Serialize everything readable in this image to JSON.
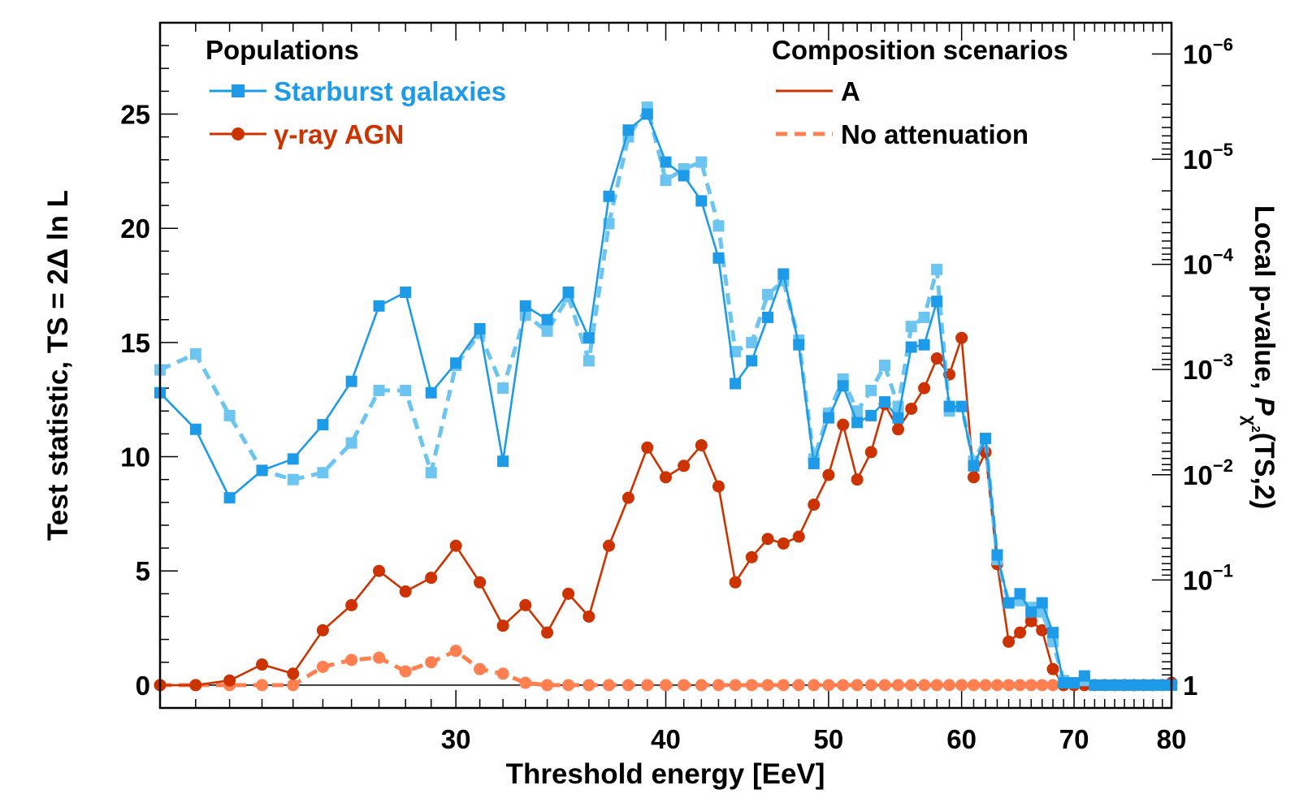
{
  "chart_data": {
    "type": "line",
    "xlabel": "Threshold energy  [EeV]",
    "ylabel": "Test statistic, TS = 2Δ ln L",
    "y2label_main": "Local p-value, ",
    "y2label_P": "P",
    "y2label_sub": "χ",
    "y2label_sup": "2",
    "y2label_tail": "(TS,2)",
    "xscale": "log",
    "xlim": [
      20,
      80
    ],
    "ylim": [
      -1,
      29
    ],
    "x_ticks": [
      30,
      40,
      50,
      60,
      70,
      80
    ],
    "y_ticks": [
      0,
      5,
      10,
      15,
      20,
      25
    ],
    "p_ticks": [
      {
        "base": "1",
        "exp": "",
        "ts": 0
      },
      {
        "base": "10",
        "exp": "−1",
        "ts": 4.605
      },
      {
        "base": "10",
        "exp": "−2",
        "ts": 9.21
      },
      {
        "base": "10",
        "exp": "−3",
        "ts": 13.816
      },
      {
        "base": "10",
        "exp": "−4",
        "ts": 18.421
      },
      {
        "base": "10",
        "exp": "−5",
        "ts": 23.026
      },
      {
        "base": "10",
        "exp": "−6",
        "ts": 27.631
      }
    ],
    "legend_populations": {
      "title": "Populations",
      "items": [
        {
          "label": "Starburst galaxies",
          "color": "#1e9be8",
          "marker": "square"
        },
        {
          "label": "γ-ray AGN",
          "color": "#cc3300",
          "marker": "circle"
        }
      ]
    },
    "legend_scenarios": {
      "title": "Composition scenarios",
      "items": [
        {
          "label": "A",
          "style": "solid",
          "color": "#cc3300"
        },
        {
          "label": "No attenuation",
          "style": "dashed",
          "color": "#ff7f50"
        }
      ]
    },
    "series": [
      {
        "name": "Starburst galaxies - A",
        "color": "#1e9be8",
        "dash": "solid",
        "marker": "square",
        "x": [
          20,
          21,
          22,
          23,
          24,
          25,
          26,
          27,
          28,
          29,
          30,
          31,
          32,
          33,
          34,
          35,
          36,
          37,
          38,
          39,
          40,
          41,
          42,
          43,
          44,
          45,
          46,
          47,
          48,
          49,
          50,
          51,
          52,
          53,
          54,
          55,
          56,
          57,
          58,
          59,
          60,
          61,
          62,
          63,
          64,
          65,
          66,
          67,
          68,
          69,
          70,
          71,
          72,
          73,
          74,
          75,
          76,
          77,
          78,
          79,
          80
        ],
        "y": [
          12.8,
          11.2,
          8.2,
          9.4,
          9.9,
          11.4,
          13.3,
          16.6,
          17.2,
          12.8,
          14.1,
          15.6,
          9.8,
          16.6,
          16.0,
          17.2,
          15.2,
          21.4,
          24.3,
          25.0,
          22.9,
          22.3,
          21.2,
          18.7,
          13.2,
          14.2,
          16.1,
          18.0,
          14.9,
          9.7,
          11.7,
          13.1,
          11.5,
          11.8,
          12.4,
          11.7,
          14.8,
          14.9,
          16.8,
          12.2,
          12.2,
          9.6,
          10.8,
          5.7,
          3.6,
          4.0,
          3.2,
          3.6,
          2.3,
          0.1,
          0.1,
          0.4,
          0.0,
          0.0,
          0.0,
          0.0,
          0.0,
          0.0,
          0.0,
          0.0,
          0.0
        ]
      },
      {
        "name": "Starburst galaxies - No attenuation",
        "color": "#6cc5f0",
        "dash": "dashed",
        "marker": "square",
        "x": [
          20,
          21,
          22,
          23,
          24,
          25,
          26,
          27,
          28,
          29,
          30,
          31,
          32,
          33,
          34,
          35,
          36,
          37,
          38,
          39,
          40,
          41,
          42,
          43,
          44,
          45,
          46,
          47,
          48,
          49,
          50,
          51,
          52,
          53,
          54,
          55,
          56,
          57,
          58,
          59,
          60,
          61,
          62,
          63,
          64,
          65,
          66,
          67,
          68,
          69,
          70,
          71,
          72,
          73,
          74,
          75,
          76,
          77,
          78,
          79,
          80
        ],
        "y": [
          13.8,
          14.5,
          11.8,
          9.4,
          9.0,
          9.3,
          10.6,
          12.9,
          12.9,
          9.3,
          14.0,
          15.4,
          13.0,
          16.2,
          15.5,
          17.0,
          14.2,
          20.2,
          24.0,
          25.3,
          22.1,
          22.6,
          22.9,
          20.1,
          14.6,
          15.0,
          17.1,
          17.7,
          15.1,
          9.9,
          11.9,
          13.4,
          12.0,
          12.9,
          14.0,
          12.2,
          15.7,
          16.1,
          18.2,
          12.0,
          12.2,
          9.8,
          10.8,
          5.5,
          3.6,
          3.7,
          3.4,
          3.2,
          1.9,
          0.2,
          0.1,
          0.2,
          0.0,
          0.0,
          0.0,
          0.0,
          0.0,
          0.0,
          0.0,
          0.0,
          0.0
        ]
      },
      {
        "name": "γ-ray AGN - A",
        "color": "#cc3300",
        "dash": "solid",
        "marker": "circle",
        "x": [
          20,
          21,
          22,
          23,
          24,
          25,
          26,
          27,
          28,
          29,
          30,
          31,
          32,
          33,
          34,
          35,
          36,
          37,
          38,
          39,
          40,
          41,
          42,
          43,
          44,
          45,
          46,
          47,
          48,
          49,
          50,
          51,
          52,
          53,
          54,
          55,
          56,
          57,
          58,
          59,
          60,
          61,
          62,
          63,
          64,
          65,
          66,
          67,
          68,
          69,
          70,
          71,
          72,
          73,
          74,
          75,
          76,
          77,
          78,
          79,
          80
        ],
        "y": [
          0.0,
          0.0,
          0.2,
          0.9,
          0.5,
          2.4,
          3.5,
          5.0,
          4.1,
          4.7,
          6.1,
          4.5,
          2.6,
          3.5,
          2.3,
          4.0,
          3.0,
          6.1,
          8.2,
          10.4,
          9.1,
          9.6,
          10.5,
          8.7,
          4.5,
          5.6,
          6.4,
          6.2,
          6.5,
          7.9,
          9.2,
          11.4,
          9.0,
          10.2,
          12.3,
          11.2,
          12.1,
          13.0,
          14.3,
          13.6,
          15.2,
          9.1,
          10.2,
          5.3,
          1.9,
          2.3,
          2.8,
          2.4,
          0.7,
          0.0,
          0.0,
          0.0,
          0.0,
          0.0,
          0.0,
          0.0,
          0.0,
          0.0,
          0.0,
          0.0,
          0.1
        ]
      },
      {
        "name": "γ-ray AGN - No attenuation",
        "color": "#ff7f50",
        "dash": "dashed",
        "marker": "circle",
        "x": [
          20,
          21,
          22,
          23,
          24,
          25,
          26,
          27,
          28,
          29,
          30,
          31,
          32,
          33,
          34,
          35,
          36,
          37,
          38,
          39,
          40,
          41,
          42,
          43,
          44,
          45,
          46,
          47,
          48,
          49,
          50,
          51,
          52,
          53,
          54,
          55,
          56,
          57,
          58,
          59,
          60,
          61,
          62,
          63,
          64,
          65,
          66,
          67,
          68,
          69,
          70,
          71,
          72,
          73,
          74,
          75,
          76,
          77,
          78,
          79
        ],
        "y": [
          0.0,
          0.0,
          0.0,
          0.0,
          0.0,
          0.8,
          1.1,
          1.2,
          0.6,
          1.0,
          1.5,
          0.7,
          0.5,
          0.1,
          0.0,
          0.0,
          0.0,
          0.0,
          0.0,
          0.0,
          0.0,
          0.0,
          0.0,
          0.0,
          0.0,
          0.0,
          0.0,
          0.0,
          0.0,
          0.0,
          0.0,
          0.0,
          0.0,
          0.0,
          0.0,
          0.0,
          0.0,
          0.0,
          0.0,
          0.0,
          0.0,
          0.0,
          0.0,
          0.0,
          0.0,
          0.0,
          0.0,
          0.0,
          0.0,
          0.0,
          0.0,
          0.0,
          0.0,
          0.0,
          0.0,
          0.0,
          0.0,
          0.0,
          0.0,
          0.0
        ]
      }
    ]
  }
}
